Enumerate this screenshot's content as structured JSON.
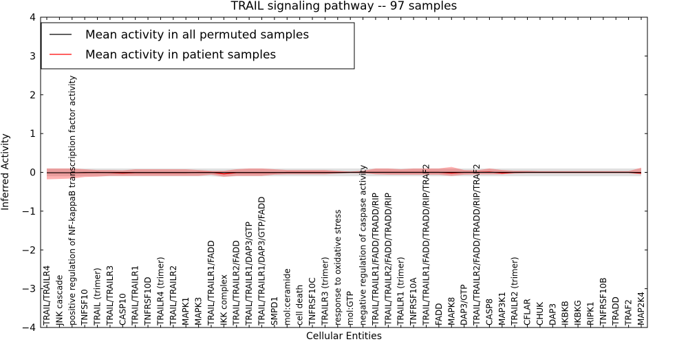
{
  "chart_data": {
    "type": "line",
    "title": "TRAIL signaling pathway -- 97 samples",
    "xlabel": "Cellular Entities",
    "ylabel": "Inferred Activity",
    "ylim": [
      -4,
      4
    ],
    "yticks": [
      -4,
      -3,
      -2,
      -1,
      0,
      1,
      2,
      3,
      4
    ],
    "ytick_labels": [
      "−4",
      "−3",
      "−2",
      "−1",
      "0",
      "1",
      "2",
      "3",
      "4"
    ],
    "grid": false,
    "legend_position": "top-left",
    "categories": [
      "TRAIL/TRAILR4",
      "JNK cascade",
      "positive regulation of NF-kappaB transcription factor activity",
      "TNFSF10",
      "TRAIL (trimer)",
      "TRAIL/TRAILR3",
      "CASP10",
      "TRAIL/TRAILR1",
      "TNFRSF10D",
      "TRAILR4 (trimer)",
      "TRAIL/TRAILR2",
      "MAPK1",
      "MAPK3",
      "TRAIL/TRAILR1/FADD",
      "IKK complex",
      "TRAIL/TRAILR2/FADD",
      "TRAIL/TRAILR1/DAP3/GTP",
      "TRAIL/TRAILR1/DAP3/GTP/FADD",
      "SMPD1",
      "mol:ceramide",
      "cell death",
      "TNFRSF10C",
      "TRAILR3 (trimer)",
      "response to oxidative stress",
      "mol:GTP",
      "negative regulation of caspase activity",
      "TRAIL/TRAILR1/FADD/TRADD/RIP",
      "TRAIL/TRAILR2/FADD/TRADD/RIP",
      "TRAILR1 (trimer)",
      "TNFRSF10A",
      "TRAIL/TRAILR1/FADD/TRADD/RIP/TRAF2",
      "FADD",
      "MAPK8",
      "DAP3/GTP",
      "TRAIL/TRAILR2/FADD/TRADD/RIP/TRAF2",
      "CASP8",
      "MAP3K1",
      "TRAILR2 (trimer)",
      "CFLAR",
      "CHUK",
      "DAP3",
      "IKBKB",
      "IKBKG",
      "RIPK1",
      "TNFRSF10B",
      "TRADD",
      "TRAF2",
      "MAP2K4"
    ],
    "series": [
      {
        "name": "Mean activity in all permuted samples",
        "color": "#000000",
        "values": [
          -0.01,
          -0.01,
          -0.01,
          -0.005,
          -0.005,
          -0.005,
          -0.005,
          -0.005,
          -0.005,
          -0.005,
          -0.005,
          -0.005,
          -0.005,
          -0.005,
          -0.005,
          -0.005,
          -0.005,
          -0.005,
          -0.005,
          -0.005,
          -0.005,
          -0.005,
          -0.005,
          -0.005,
          0.0,
          0.0,
          0.0,
          0.0,
          0.0,
          0.0,
          0.0,
          0.0,
          0.0,
          0.0,
          0.0,
          0.0,
          0.0,
          0.0,
          0.0,
          0.0,
          0.0,
          0.0,
          0.0,
          0.0,
          0.0,
          0.0,
          0.0,
          -0.005
        ],
        "band_lower": [
          -0.1,
          -0.1,
          -0.1,
          -0.1,
          -0.1,
          -0.1,
          -0.1,
          -0.1,
          -0.1,
          -0.1,
          -0.1,
          -0.1,
          -0.1,
          -0.1,
          -0.12,
          -0.1,
          -0.1,
          -0.1,
          -0.1,
          -0.1,
          -0.1,
          -0.1,
          -0.1,
          -0.1,
          -0.1,
          -0.1,
          -0.1,
          -0.1,
          -0.1,
          -0.1,
          -0.1,
          -0.1,
          -0.1,
          -0.1,
          -0.1,
          -0.1,
          -0.1,
          -0.1,
          -0.1,
          -0.1,
          -0.1,
          -0.1,
          -0.1,
          -0.1,
          -0.1,
          -0.1,
          -0.1,
          -0.1
        ],
        "band_upper": [
          0.1,
          0.1,
          0.1,
          0.1,
          0.1,
          0.1,
          0.1,
          0.1,
          0.1,
          0.1,
          0.1,
          0.1,
          0.1,
          0.1,
          0.1,
          0.1,
          0.1,
          0.1,
          0.1,
          0.1,
          0.1,
          0.1,
          0.1,
          0.1,
          0.1,
          0.1,
          0.1,
          0.1,
          0.1,
          0.1,
          0.1,
          0.1,
          0.1,
          0.1,
          0.1,
          0.1,
          0.1,
          0.1,
          0.1,
          0.1,
          0.1,
          0.1,
          0.1,
          0.1,
          0.1,
          0.1,
          0.1,
          0.1
        ]
      },
      {
        "name": "Mean activity in patient samples",
        "color": "#ff0000",
        "values": [
          -0.01,
          -0.01,
          -0.01,
          -0.01,
          0.0,
          -0.01,
          -0.02,
          -0.01,
          -0.01,
          -0.01,
          -0.01,
          -0.01,
          0.0,
          0.0,
          -0.04,
          -0.01,
          -0.01,
          -0.01,
          -0.01,
          0.0,
          0.0,
          0.0,
          0.0,
          0.0,
          0.0,
          0.0,
          0.0,
          0.0,
          0.0,
          0.0,
          0.0,
          0.0,
          -0.02,
          0.0,
          0.0,
          0.01,
          -0.02,
          0.0,
          0.0,
          0.0,
          0.0,
          0.0,
          0.0,
          0.0,
          0.0,
          0.0,
          0.0,
          -0.02
        ],
        "band_lower": [
          -0.18,
          -0.17,
          -0.16,
          -0.12,
          -0.11,
          -0.09,
          -0.09,
          -0.09,
          -0.09,
          -0.09,
          -0.09,
          -0.09,
          -0.09,
          -0.06,
          -0.11,
          -0.09,
          -0.09,
          -0.09,
          -0.06,
          -0.05,
          -0.05,
          -0.05,
          -0.05,
          -0.03,
          -0.02,
          -0.02,
          -0.05,
          -0.06,
          -0.06,
          -0.06,
          -0.06,
          -0.06,
          -0.09,
          -0.06,
          -0.05,
          -0.05,
          -0.05,
          -0.03,
          -0.02,
          -0.02,
          -0.02,
          -0.02,
          -0.02,
          -0.02,
          -0.02,
          -0.02,
          -0.02,
          -0.05
        ],
        "band_upper": [
          0.1,
          0.1,
          0.1,
          0.08,
          0.06,
          0.06,
          0.05,
          0.08,
          0.08,
          0.08,
          0.08,
          0.08,
          0.06,
          0.04,
          0.04,
          0.08,
          0.1,
          0.1,
          0.08,
          0.06,
          0.06,
          0.06,
          0.06,
          0.04,
          0.02,
          0.04,
          0.1,
          0.1,
          0.08,
          0.1,
          0.1,
          0.1,
          0.14,
          0.06,
          0.05,
          0.1,
          0.06,
          0.04,
          0.04,
          0.03,
          0.03,
          0.03,
          0.03,
          0.03,
          0.03,
          0.03,
          0.03,
          0.12
        ]
      }
    ]
  }
}
